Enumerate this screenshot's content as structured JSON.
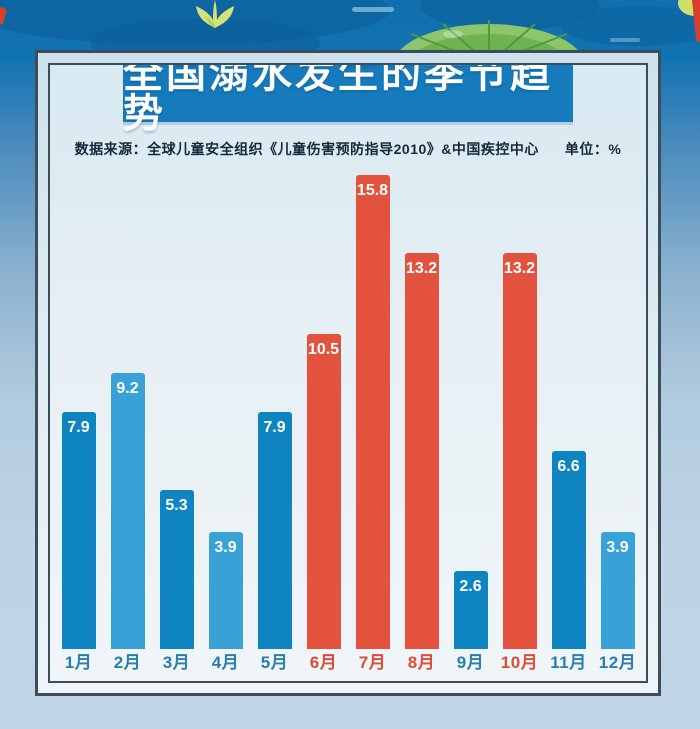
{
  "header": {
    "title": "全国溺水发生的季节趋势",
    "source": "数据来源：全球儿童安全组织《儿童伤害预防指导2010》&中国疾控中心",
    "unit": "单位：%"
  },
  "chart_data": {
    "type": "bar",
    "title": "全国溺水发生的季节趋势",
    "subtitle": "数据来源：全球儿童安全组织《儿童伤害预防指导2010》&中国疾控中心",
    "unit": "%",
    "categories": [
      "1月",
      "2月",
      "3月",
      "4月",
      "5月",
      "6月",
      "7月",
      "8月",
      "9月",
      "10月",
      "11月",
      "12月"
    ],
    "values": [
      7.9,
      9.2,
      5.3,
      3.9,
      7.9,
      10.5,
      15.8,
      13.2,
      2.6,
      13.2,
      6.6,
      3.9
    ],
    "bar_color_keys": [
      "darkBlue",
      "lightBlue",
      "darkBlue",
      "lightBlue",
      "darkBlue",
      "red",
      "red",
      "red",
      "darkBlue",
      "red",
      "darkBlue",
      "lightBlue"
    ],
    "colors": {
      "darkBlue": "#0e84c1",
      "lightBlue": "#38a1d6",
      "red": "#e2523c",
      "monthBlue": "#2b7dab",
      "monthRed": "#df4c35",
      "valueLabel": "#ffffff",
      "titleBg": "#157bbd",
      "titleText": "#ffffff"
    },
    "ylim": [
      0,
      16
    ],
    "grid": false,
    "legend": "none",
    "value_labels": "inside-top"
  }
}
